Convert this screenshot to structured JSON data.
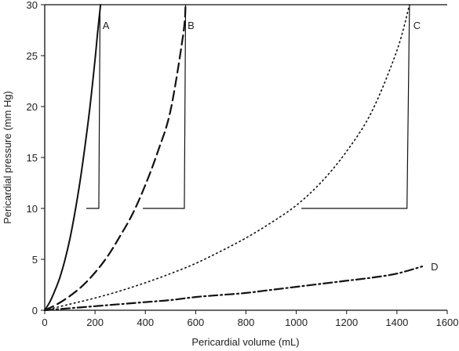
{
  "chart_data": {
    "type": "line",
    "title": "",
    "xlabel": "Pericardial volume (mL)",
    "ylabel": "Pericardial pressure (mm Hg)",
    "xlim": [
      0,
      1600
    ],
    "ylim": [
      0,
      30
    ],
    "xticks": [
      "0",
      "200",
      "400",
      "600",
      "800",
      "1000",
      "1200",
      "1400",
      "1600"
    ],
    "yticks": [
      "0",
      "5",
      "10",
      "15",
      "20",
      "25",
      "30"
    ],
    "grid": false,
    "series": [
      {
        "name": "A",
        "line_style": "solid",
        "x": [
          0,
          20,
          40,
          60,
          80,
          100,
          120,
          140,
          160,
          180,
          200,
          210,
          222
        ],
        "y": [
          0,
          0.8,
          1.9,
          3.2,
          4.9,
          7.0,
          9.6,
          12.6,
          16.1,
          20.0,
          24.6,
          27.2,
          30.0
        ],
        "drop": {
          "from_x": 220,
          "to_x": 215,
          "level": 10,
          "end_x": 165
        }
      },
      {
        "name": "B",
        "line_style": "dashed",
        "x": [
          0,
          50,
          100,
          150,
          200,
          250,
          300,
          350,
          400,
          450,
          500,
          550,
          560
        ],
        "y": [
          0,
          0.6,
          1.4,
          2.4,
          3.7,
          5.3,
          7.3,
          9.5,
          12.3,
          15.6,
          19.6,
          27.0,
          30.0
        ],
        "drop": {
          "from_x": 560,
          "to_x": 555,
          "level": 10,
          "end_x": 390
        }
      },
      {
        "name": "C",
        "line_style": "dotted",
        "x": [
          0,
          100,
          200,
          300,
          400,
          500,
          600,
          700,
          800,
          900,
          1000,
          1100,
          1200,
          1300,
          1400,
          1450
        ],
        "y": [
          0,
          0.6,
          1.2,
          1.9,
          2.7,
          3.6,
          4.6,
          5.8,
          7.1,
          8.6,
          10.3,
          12.6,
          15.6,
          19.5,
          25.5,
          30.0
        ],
        "drop": {
          "from_x": 1450,
          "to_x": 1440,
          "level": 10,
          "end_x": 1020
        }
      },
      {
        "name": "D",
        "line_style": "dash-dot",
        "x": [
          0,
          100,
          200,
          300,
          400,
          500,
          600,
          700,
          800,
          900,
          1000,
          1100,
          1200,
          1300,
          1400,
          1500
        ],
        "y": [
          0,
          0.2,
          0.4,
          0.6,
          0.8,
          1.0,
          1.3,
          1.5,
          1.7,
          2.0,
          2.3,
          2.6,
          2.9,
          3.2,
          3.6,
          4.3
        ]
      }
    ],
    "labels": [
      {
        "text": "A",
        "x": 230,
        "y": 28
      },
      {
        "text": "B",
        "x": 568,
        "y": 28
      },
      {
        "text": "C",
        "x": 1465,
        "y": 28
      },
      {
        "text": "D",
        "x": 1535,
        "y": 4.3
      }
    ]
  }
}
